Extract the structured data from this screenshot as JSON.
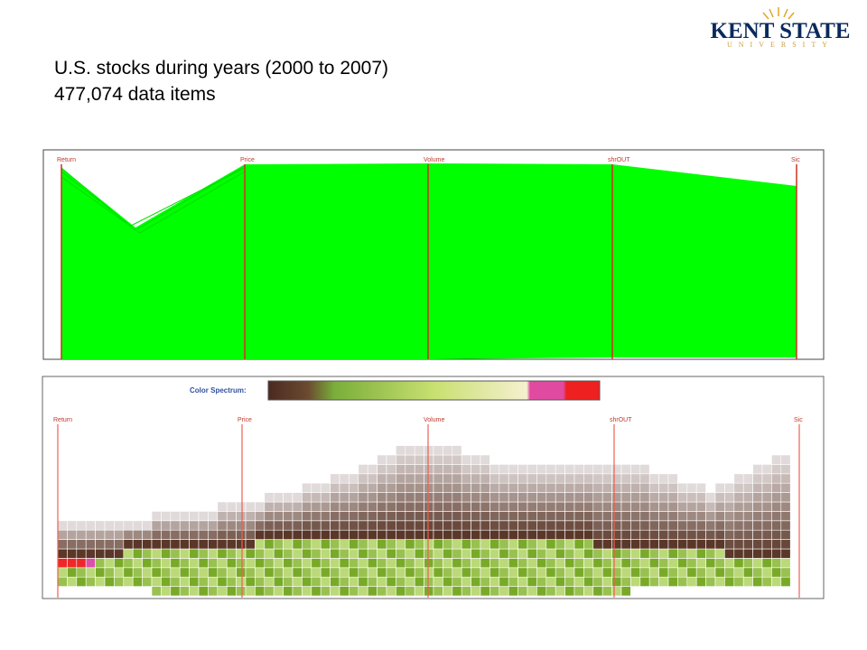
{
  "logo": {
    "name": "KENT STATE",
    "sub": "UNIVERSITY"
  },
  "header": {
    "title": "U.S. stocks during years (2000 to 2007)",
    "subtitle": "477,074 data items"
  },
  "top_plot": {
    "axes": [
      "Return",
      "Price",
      "Volume",
      "shrOUT",
      "Sic"
    ]
  },
  "bottom_plot": {
    "legend_label": "Color Spectrum:",
    "axes": [
      "Return",
      "Price",
      "Volume",
      "shrOUT",
      "Sic"
    ]
  }
}
